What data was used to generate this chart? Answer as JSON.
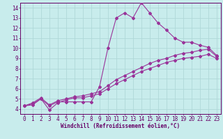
{
  "xlabel": "Windchill (Refroidissement éolien,°C)",
  "background_color": "#c8ecec",
  "grid_color": "#b0d8d8",
  "line_color": "#993399",
  "xlim": [
    -0.5,
    23.5
  ],
  "ylim": [
    3.5,
    14.5
  ],
  "xticks": [
    0,
    1,
    2,
    3,
    4,
    5,
    6,
    7,
    8,
    9,
    10,
    11,
    12,
    13,
    14,
    15,
    16,
    17,
    18,
    19,
    20,
    21,
    22,
    23
  ],
  "yticks": [
    4,
    5,
    6,
    7,
    8,
    9,
    10,
    11,
    12,
    13,
    14
  ],
  "line1_x": [
    0,
    1,
    2,
    3,
    4,
    5,
    6,
    7,
    8,
    9,
    10,
    11,
    12,
    13,
    14,
    15,
    16,
    17,
    18,
    19,
    20,
    21,
    22,
    23
  ],
  "line1_y": [
    4.3,
    4.4,
    5.0,
    4.3,
    4.7,
    4.7,
    4.7,
    4.7,
    4.7,
    6.2,
    10.0,
    13.0,
    13.5,
    13.0,
    14.5,
    13.5,
    12.5,
    11.8,
    11.0,
    10.6,
    10.6,
    10.3,
    10.1,
    9.3
  ],
  "line2_x": [
    0,
    1,
    2,
    3,
    4,
    5,
    6,
    7,
    8,
    9,
    10,
    11,
    12,
    13,
    14,
    15,
    16,
    17,
    18,
    19,
    20,
    21,
    22,
    23
  ],
  "line2_y": [
    4.3,
    4.6,
    5.1,
    4.4,
    4.8,
    5.0,
    5.2,
    5.3,
    5.5,
    5.7,
    6.3,
    6.9,
    7.3,
    7.7,
    8.1,
    8.5,
    8.8,
    9.0,
    9.3,
    9.5,
    9.6,
    9.8,
    9.9,
    9.2
  ],
  "line3_x": [
    0,
    1,
    2,
    3,
    4,
    5,
    6,
    7,
    8,
    9,
    10,
    11,
    12,
    13,
    14,
    15,
    16,
    17,
    18,
    19,
    20,
    21,
    22,
    23
  ],
  "line3_y": [
    4.3,
    4.5,
    5.0,
    3.9,
    4.6,
    4.9,
    5.1,
    5.1,
    5.3,
    5.5,
    6.0,
    6.5,
    6.9,
    7.3,
    7.7,
    8.0,
    8.3,
    8.6,
    8.8,
    9.0,
    9.1,
    9.2,
    9.4,
    9.0
  ],
  "tick_fontsize": 5.5,
  "xlabel_fontsize": 5.5
}
